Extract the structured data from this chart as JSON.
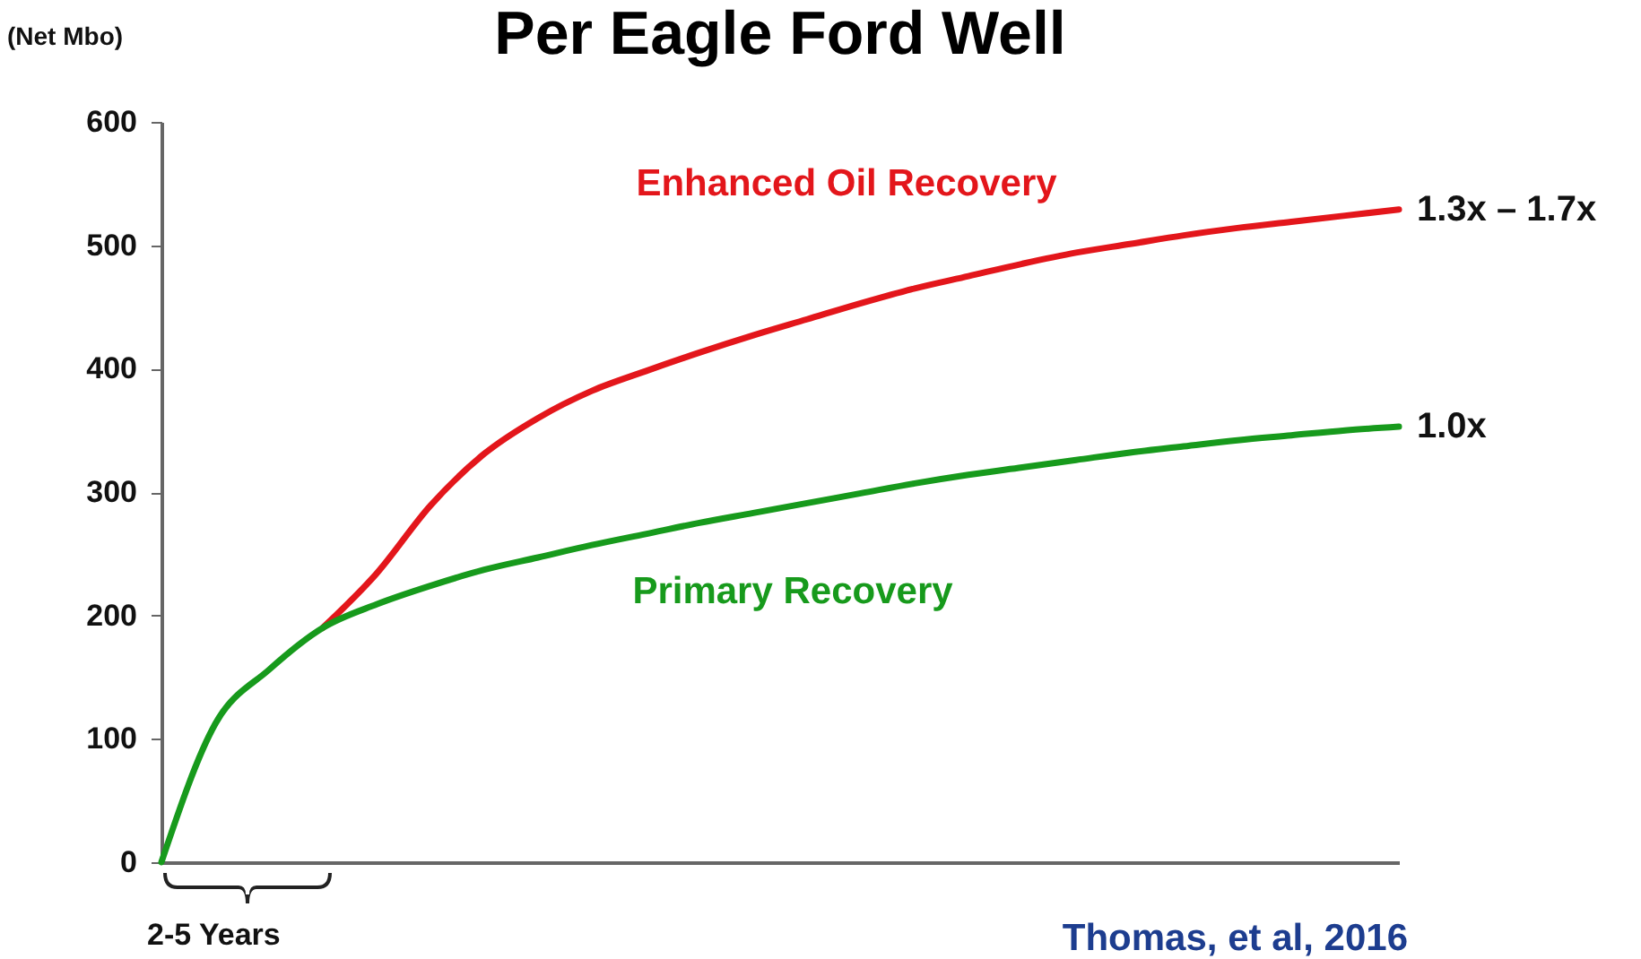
{
  "chart_data": {
    "type": "line",
    "title": "Per Eagle Ford Well",
    "ylabel": "(Net Mbo)",
    "categories": [
      null,
      null,
      null,
      null,
      null,
      null,
      null,
      null,
      null,
      null,
      null,
      null,
      null,
      null,
      null,
      null,
      null,
      null,
      null,
      null,
      null,
      null,
      null,
      null
    ],
    "series": [
      {
        "name": "Enhanced Oil Recovery",
        "color": "#e3161b",
        "values": [
          null,
          null,
          null,
          190,
          234,
          289,
          331,
          360,
          382,
          398,
          413,
          427,
          440,
          453,
          465,
          475,
          485,
          494,
          501,
          508,
          514,
          519,
          524,
          529
        ]
      },
      {
        "name": "Primary Recovery",
        "color": "#179a1c",
        "values": [
          0,
          112,
          156,
          190,
          209,
          224,
          237,
          247,
          257,
          266,
          275,
          283,
          291,
          299,
          307,
          314,
          320,
          326,
          332,
          337,
          342,
          346,
          350,
          353
        ]
      }
    ],
    "ylim": [
      0,
      600
    ],
    "yticks": [
      0,
      100,
      200,
      300,
      400,
      500,
      600
    ],
    "grid": false,
    "legend": false,
    "tick_labels": "y",
    "line_style": "solid",
    "marker": "none",
    "annotations": [
      "2-5 Years",
      "Thomas, et al, 2016",
      "1.3x – 1.7x",
      "1.0x"
    ]
  }
}
